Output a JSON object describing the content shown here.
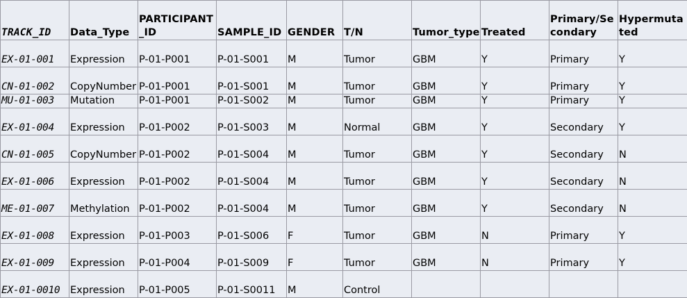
{
  "table": {
    "headers": [
      "TRACK_ID",
      "Data_Type",
      "PARTICIPANT_ID",
      "SAMPLE_ID",
      "GENDER",
      "T/N",
      "Tumor_type",
      "Treated",
      "Primary/Secondary",
      "Hypermutated"
    ],
    "rows": [
      [
        "EX-01-001",
        "Expression",
        "P-01-P001",
        "P-01-S001",
        "M",
        "Tumor",
        "GBM",
        "Y",
        "Primary",
        "Y"
      ],
      [
        "CN-01-002",
        "CopyNumber",
        "P-01-P001",
        "P-01-S001",
        "M",
        "Tumor",
        "GBM",
        "Y",
        "Primary",
        "Y"
      ],
      [
        "MU-01-003",
        "Mutation",
        "P-01-P001",
        "P-01-S002",
        "M",
        "Tumor",
        "GBM",
        "Y",
        "Primary",
        "Y"
      ],
      [
        "EX-01-004",
        "Expression",
        "P-01-P002",
        "P-01-S003",
        "M",
        "Normal",
        "GBM",
        "Y",
        "Secondary",
        "Y"
      ],
      [
        "CN-01-005",
        "CopyNumber",
        "P-01-P002",
        "P-01-S004",
        "M",
        "Tumor",
        "GBM",
        "Y",
        "Secondary",
        "N"
      ],
      [
        "EX-01-006",
        "Expression",
        "P-01-P002",
        "P-01-S004",
        "M",
        "Tumor",
        "GBM",
        "Y",
        "Secondary",
        "N"
      ],
      [
        "ME-01-007",
        "Methylation",
        "P-01-P002",
        "P-01-S004",
        "M",
        "Tumor",
        "GBM",
        "Y",
        "Secondary",
        "N"
      ],
      [
        "EX-01-008",
        "Expression",
        "P-01-P003",
        "P-01-S006",
        "F",
        "Tumor",
        "GBM",
        "N",
        "Primary",
        "Y"
      ],
      [
        "EX-01-009",
        "Expression",
        "P-01-P004",
        "P-01-S009",
        "F",
        "Tumor",
        "GBM",
        "N",
        "Primary",
        "Y"
      ],
      [
        "EX-01-0010",
        "Expression",
        "P-01-P005",
        "P-01-S0011",
        "M",
        "Control",
        "",
        "",
        "",
        ""
      ]
    ]
  }
}
